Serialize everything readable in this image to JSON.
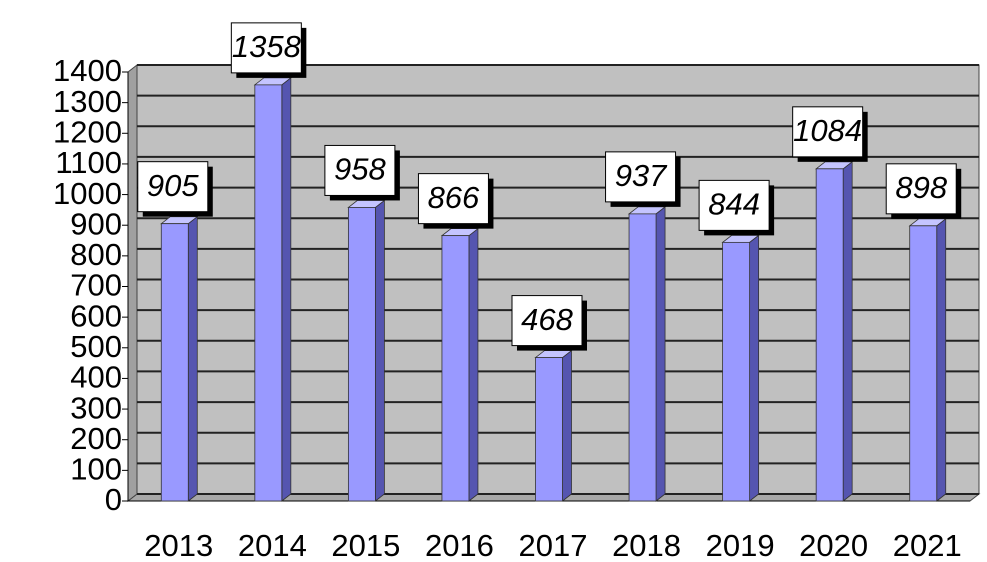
{
  "chart_data": {
    "type": "bar",
    "categories": [
      "2013",
      "2014",
      "2015",
      "2016",
      "2017",
      "2018",
      "2019",
      "2020",
      "2021"
    ],
    "values": [
      905,
      1358,
      958,
      866,
      468,
      937,
      844,
      1084,
      898
    ],
    "color": "#9999ff",
    "ylim": [
      0,
      1400
    ],
    "yticks": [
      0,
      100,
      200,
      300,
      400,
      500,
      600,
      700,
      800,
      900,
      1000,
      1100,
      1200,
      1300,
      1400
    ],
    "grid": true
  }
}
